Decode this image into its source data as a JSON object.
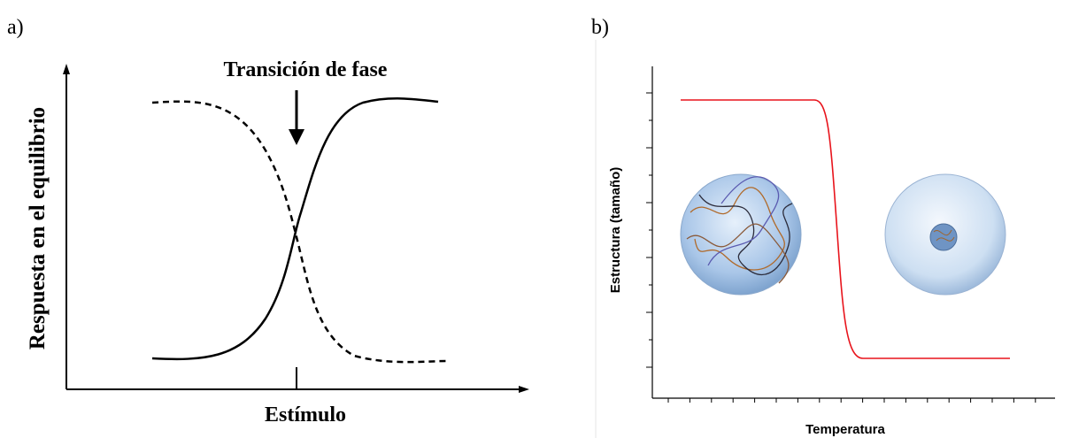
{
  "panel_a": {
    "label": "a)",
    "title": "Transición de fase",
    "y_label": "Respuesta en el equilibrio",
    "x_label": "Estímulo"
  },
  "panel_b": {
    "label": "b)",
    "y_label": "Estructura (tamaño)",
    "x_label": "Temperatura"
  }
}
